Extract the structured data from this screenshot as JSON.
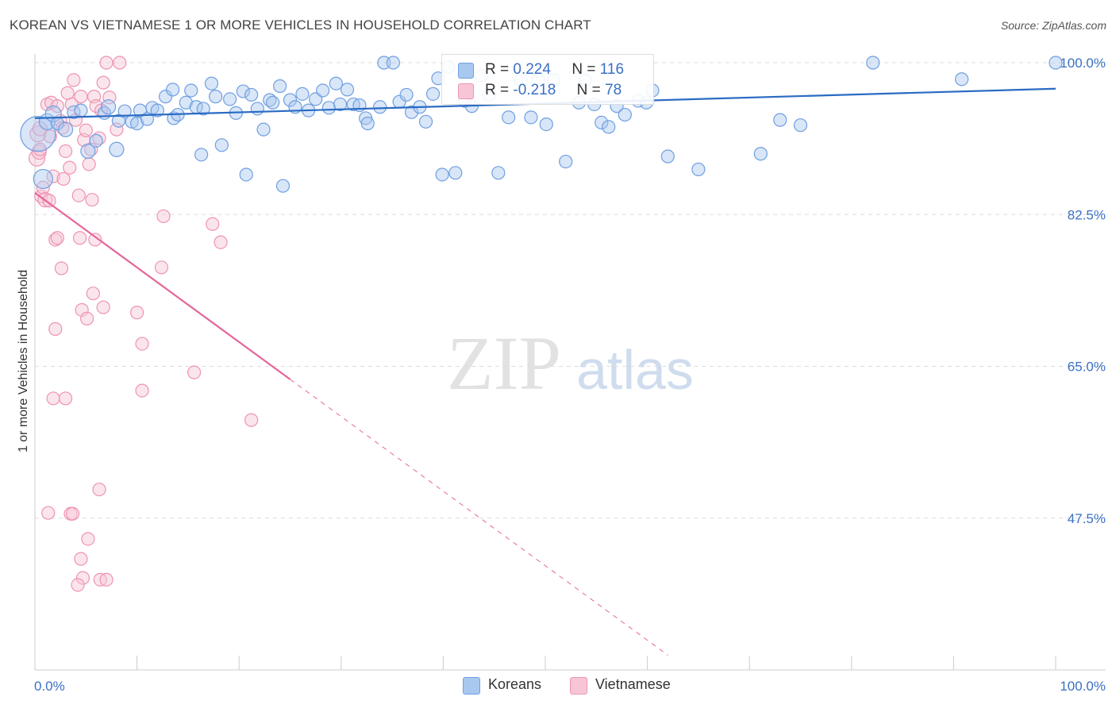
{
  "header": {
    "title": "KOREAN VS VIETNAMESE 1 OR MORE VEHICLES IN HOUSEHOLD CORRELATION CHART",
    "source": "Source: ZipAtlas.com"
  },
  "watermark": {
    "zip": "ZIP",
    "atlas": "atlas"
  },
  "legend_top": {
    "korean": {
      "r_label": "R =",
      "r_value": "0.224",
      "n_label": "N =",
      "n_value": "116"
    },
    "vietnamese": {
      "r_label": "R =",
      "r_value": "-0.218",
      "n_label": "N =",
      "n_value": "78"
    }
  },
  "legend_bottom": {
    "korean": "Koreans",
    "vietnamese": "Vietnamese"
  },
  "colors": {
    "korean_fill": "#a9c8f0",
    "korean_stroke": "#6f9fe0",
    "korean_line": "#2a6bc4",
    "viet_fill": "#f7c6d6",
    "viet_stroke": "#ee93b1",
    "viet_line": "#e4659a",
    "axis_label": "#3a70c4",
    "grid": "#dddddd"
  },
  "chart_data": {
    "type": "scatter",
    "title": "KOREAN VS VIETNAMESE 1 OR MORE VEHICLES IN HOUSEHOLD CORRELATION CHART",
    "xlabel": "",
    "ylabel": "1 or more Vehicles in Household",
    "xlim": [
      0,
      100
    ],
    "ylim": [
      30.0,
      100.0
    ],
    "x_tick_labels": {
      "left": "0.0%",
      "right": "100.0%"
    },
    "y_ticks": [
      {
        "value": 100.0,
        "label": "100.0%"
      },
      {
        "value": 82.5,
        "label": "82.5%"
      },
      {
        "value": 65.0,
        "label": "65.0%"
      },
      {
        "value": 47.5,
        "label": "47.5%"
      }
    ],
    "grid": true,
    "legend_position": "top-center",
    "trendlines": [
      {
        "series": "Koreans",
        "x": [
          0,
          100
        ],
        "y": [
          93.6,
          97.0
        ],
        "style": "solid"
      },
      {
        "series": "Vietnamese",
        "x": [
          0,
          25
        ],
        "y": [
          85.0,
          63.5
        ],
        "style": "solid"
      },
      {
        "series": "Vietnamese",
        "x": [
          25,
          62
        ],
        "y": [
          63.5,
          31.7
        ],
        "style": "dashed"
      }
    ],
    "series": [
      {
        "name": "Koreans",
        "r": 0.224,
        "n": 116,
        "points": [
          [
            0.3,
            91.8,
            22
          ],
          [
            0.8,
            86.6,
            12
          ],
          [
            1.2,
            93.2,
            10
          ],
          [
            1.8,
            94.1,
            10
          ],
          [
            2.2,
            93.0,
            8
          ],
          [
            3.0,
            92.3,
            9
          ],
          [
            3.8,
            94.3,
            8
          ],
          [
            4.5,
            94.5,
            8
          ],
          [
            5.2,
            89.8,
            9
          ],
          [
            6.0,
            91.0,
            8
          ],
          [
            6.8,
            94.2,
            8
          ],
          [
            7.2,
            94.9,
            9
          ],
          [
            8.0,
            90.0,
            9
          ],
          [
            8.2,
            93.3,
            8
          ],
          [
            8.8,
            94.4,
            8
          ],
          [
            9.5,
            93.2,
            8
          ],
          [
            10.0,
            93.0,
            8
          ],
          [
            10.3,
            94.5,
            8
          ],
          [
            11.0,
            93.5,
            8
          ],
          [
            11.5,
            94.8,
            8
          ],
          [
            12.0,
            94.5,
            8
          ],
          [
            12.8,
            96.1,
            8
          ],
          [
            13.5,
            96.9,
            8
          ],
          [
            13.6,
            93.6,
            8
          ],
          [
            14.0,
            94.0,
            8
          ],
          [
            14.8,
            95.4,
            8
          ],
          [
            15.3,
            96.8,
            8
          ],
          [
            15.8,
            94.9,
            8
          ],
          [
            16.3,
            89.4,
            8
          ],
          [
            16.5,
            94.7,
            8
          ],
          [
            17.3,
            97.6,
            8
          ],
          [
            17.7,
            96.1,
            8
          ],
          [
            18.3,
            90.5,
            8
          ],
          [
            19.1,
            95.8,
            8
          ],
          [
            19.7,
            94.2,
            8
          ],
          [
            20.4,
            96.7,
            8
          ],
          [
            20.7,
            87.1,
            8
          ],
          [
            21.2,
            96.3,
            8
          ],
          [
            21.8,
            94.7,
            8
          ],
          [
            22.4,
            92.3,
            8
          ],
          [
            23.0,
            95.7,
            8
          ],
          [
            23.3,
            95.4,
            8
          ],
          [
            24.0,
            97.3,
            8
          ],
          [
            24.3,
            85.8,
            8
          ],
          [
            25.0,
            95.7,
            8
          ],
          [
            25.5,
            94.9,
            8
          ],
          [
            26.2,
            96.4,
            8
          ],
          [
            26.8,
            94.5,
            8
          ],
          [
            27.5,
            95.8,
            8
          ],
          [
            28.2,
            96.8,
            8
          ],
          [
            28.8,
            94.8,
            8
          ],
          [
            29.5,
            97.6,
            8
          ],
          [
            29.9,
            95.2,
            8
          ],
          [
            30.6,
            96.9,
            8
          ],
          [
            31.2,
            95.2,
            8
          ],
          [
            31.8,
            95.1,
            8
          ],
          [
            32.4,
            93.6,
            8
          ],
          [
            32.6,
            93.0,
            8
          ],
          [
            33.8,
            94.9,
            8
          ],
          [
            34.2,
            100.0,
            8
          ],
          [
            35.1,
            100.0,
            8
          ],
          [
            35.7,
            95.5,
            8
          ],
          [
            36.4,
            96.3,
            8
          ],
          [
            36.9,
            94.3,
            8
          ],
          [
            37.7,
            94.9,
            8
          ],
          [
            38.3,
            93.2,
            8
          ],
          [
            39.0,
            96.4,
            8
          ],
          [
            39.5,
            98.2,
            8
          ],
          [
            39.9,
            87.1,
            8
          ],
          [
            40.5,
            99.5,
            8
          ],
          [
            41.2,
            87.3,
            8
          ],
          [
            42.1,
            95.6,
            8
          ],
          [
            42.8,
            95.0,
            8
          ],
          [
            43.7,
            98.5,
            8
          ],
          [
            44.5,
            96.3,
            8
          ],
          [
            45.4,
            87.3,
            8
          ],
          [
            46.4,
            93.7,
            8
          ],
          [
            47.6,
            98.0,
            8
          ],
          [
            48.6,
            93.7,
            8
          ],
          [
            49.3,
            98.0,
            8
          ],
          [
            50.1,
            92.9,
            8
          ],
          [
            50.8,
            98.0,
            8
          ],
          [
            52.0,
            88.6,
            8
          ],
          [
            53.3,
            95.4,
            8
          ],
          [
            53.9,
            98.0,
            8
          ],
          [
            54.8,
            95.2,
            8
          ],
          [
            55.5,
            93.1,
            8
          ],
          [
            56.2,
            92.6,
            8
          ],
          [
            57.0,
            95.0,
            8
          ],
          [
            57.8,
            94.0,
            8
          ],
          [
            59.1,
            95.6,
            8
          ],
          [
            59.9,
            95.4,
            8
          ],
          [
            60.5,
            96.8,
            8
          ],
          [
            62.0,
            89.2,
            8
          ],
          [
            65.0,
            87.7,
            8
          ],
          [
            71.1,
            89.5,
            8
          ],
          [
            73.0,
            93.4,
            8
          ],
          [
            75.0,
            92.8,
            8
          ],
          [
            82.1,
            100.0,
            8
          ],
          [
            90.8,
            98.1,
            8
          ],
          [
            100.0,
            100.0,
            8
          ]
        ]
      },
      {
        "name": "Vietnamese",
        "r": -0.218,
        "n": 78,
        "points": [
          [
            0.2,
            89.0,
            10
          ],
          [
            0.3,
            91.8,
            10
          ],
          [
            0.4,
            89.7,
            9
          ],
          [
            0.5,
            92.4,
            9
          ],
          [
            0.6,
            84.6,
            8
          ],
          [
            0.8,
            85.6,
            8
          ],
          [
            1.0,
            84.2,
            9
          ],
          [
            1.2,
            95.2,
            8
          ],
          [
            1.4,
            84.1,
            8
          ],
          [
            1.6,
            95.4,
            8
          ],
          [
            1.8,
            86.9,
            8
          ],
          [
            2.0,
            79.6,
            8
          ],
          [
            2.2,
            95.0,
            8
          ],
          [
            2.5,
            93.3,
            8
          ],
          [
            2.7,
            92.5,
            8
          ],
          [
            3.0,
            89.8,
            8
          ],
          [
            3.2,
            96.5,
            8
          ],
          [
            3.4,
            87.9,
            8
          ],
          [
            3.6,
            95.2,
            8
          ],
          [
            3.8,
            98.0,
            8
          ],
          [
            4.0,
            93.4,
            8
          ],
          [
            4.3,
            84.7,
            8
          ],
          [
            4.5,
            96.1,
            8
          ],
          [
            4.8,
            91.1,
            8
          ],
          [
            5.0,
            92.2,
            8
          ],
          [
            5.3,
            88.3,
            8
          ],
          [
            5.5,
            90.0,
            8
          ],
          [
            5.8,
            96.1,
            8
          ],
          [
            6.0,
            95.0,
            8
          ],
          [
            6.3,
            91.3,
            8
          ],
          [
            6.5,
            94.5,
            8
          ],
          [
            6.7,
            97.7,
            8
          ],
          [
            7.0,
            100.0,
            8
          ],
          [
            8.0,
            92.3,
            8
          ],
          [
            8.3,
            100.0,
            8
          ],
          [
            2.2,
            79.8,
            8
          ],
          [
            2.6,
            76.3,
            8
          ],
          [
            4.4,
            79.8,
            8
          ],
          [
            5.9,
            79.6,
            8
          ],
          [
            4.6,
            71.5,
            8
          ],
          [
            5.1,
            70.5,
            8
          ],
          [
            5.7,
            73.4,
            8
          ],
          [
            6.7,
            71.8,
            8
          ],
          [
            2.0,
            69.3,
            8
          ],
          [
            10.0,
            71.2,
            8
          ],
          [
            10.5,
            67.6,
            8
          ],
          [
            12.4,
            76.4,
            8
          ],
          [
            12.6,
            82.3,
            8
          ],
          [
            17.4,
            81.4,
            8
          ],
          [
            18.2,
            79.3,
            8
          ],
          [
            15.6,
            64.3,
            8
          ],
          [
            10.5,
            62.2,
            8
          ],
          [
            21.2,
            58.8,
            8
          ],
          [
            1.8,
            61.3,
            8
          ],
          [
            3.0,
            61.3,
            8
          ],
          [
            6.3,
            50.8,
            8
          ],
          [
            1.3,
            48.1,
            8
          ],
          [
            3.5,
            48.0,
            8
          ],
          [
            3.7,
            48.0,
            8
          ],
          [
            5.2,
            45.1,
            8
          ],
          [
            4.5,
            42.8,
            8
          ],
          [
            4.7,
            40.6,
            8
          ],
          [
            4.2,
            39.8,
            8
          ],
          [
            6.4,
            40.4,
            8
          ],
          [
            7.0,
            40.4,
            8
          ],
          [
            0.5,
            90.0,
            8
          ],
          [
            1.5,
            91.5,
            8
          ],
          [
            2.8,
            86.6,
            8
          ],
          [
            5.6,
            84.2,
            8
          ],
          [
            7.3,
            96.0,
            8
          ]
        ]
      }
    ]
  }
}
